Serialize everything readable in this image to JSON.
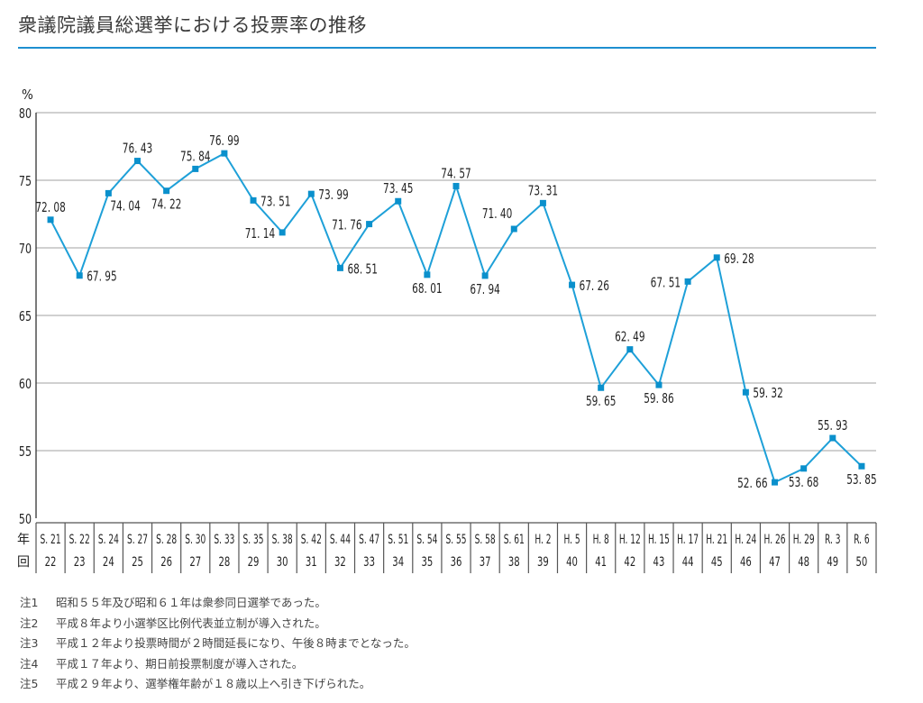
{
  "title": "衆議院議員総選挙における投票率の推移",
  "colors": {
    "accent": "#1d8fd0",
    "line": "#1ea0d8",
    "marker": "#0a90cc",
    "grid": "#b5b5b5"
  },
  "chart_data": {
    "type": "line",
    "title": "衆議院議員総選挙における投票率の推移",
    "ylabel": "%",
    "ylim": [
      50,
      80
    ],
    "yticks": [
      50,
      55,
      60,
      65,
      70,
      75,
      80
    ],
    "grid": true,
    "row_labels": {
      "year": "年",
      "session": "回"
    },
    "years": [
      "S. 21",
      "S. 22",
      "S. 24",
      "S. 27",
      "S. 28",
      "S. 30",
      "S. 33",
      "S. 35",
      "S. 38",
      "S. 42",
      "S. 44",
      "S. 47",
      "S. 51",
      "S. 54",
      "S. 55",
      "S. 58",
      "S. 61",
      "H. 2",
      "H. 5",
      "H. 8",
      "H. 12",
      "H. 15",
      "H. 17",
      "H. 21",
      "H. 24",
      "H. 26",
      "H. 29",
      "R. 3",
      "R. 6"
    ],
    "sessions": [
      "22",
      "23",
      "24",
      "25",
      "26",
      "27",
      "28",
      "29",
      "30",
      "31",
      "32",
      "33",
      "34",
      "35",
      "36",
      "37",
      "38",
      "39",
      "40",
      "41",
      "42",
      "43",
      "44",
      "45",
      "46",
      "47",
      "48",
      "49",
      "50"
    ],
    "values": [
      72.08,
      67.95,
      74.04,
      76.43,
      74.22,
      75.84,
      76.99,
      73.51,
      71.14,
      73.99,
      68.51,
      71.76,
      73.45,
      68.01,
      74.57,
      67.94,
      71.4,
      73.31,
      67.26,
      59.65,
      62.49,
      59.86,
      67.51,
      69.28,
      59.32,
      52.66,
      53.68,
      55.93,
      53.85
    ],
    "value_labels": [
      "72. 08",
      "67. 95",
      "74. 04",
      "76. 43",
      "74. 22",
      "75. 84",
      "76. 99",
      "73. 51",
      "71. 14",
      "73. 99",
      "68. 51",
      "71. 76",
      "73. 45",
      "68. 01",
      "74. 57",
      "67. 94",
      "71. 40",
      "73. 31",
      "67. 26",
      "59. 65",
      "62. 49",
      "59. 86",
      "67. 51",
      "69. 28",
      "59. 32",
      "52. 66",
      "53. 68",
      "55. 93",
      "53. 85"
    ],
    "label_side": [
      "top",
      "right",
      "bottom-right",
      "top",
      "bottom",
      "top",
      "top",
      "right",
      "left",
      "right",
      "right",
      "left",
      "top",
      "bottom",
      "top",
      "bottom",
      "top-left",
      "top",
      "right",
      "bottom",
      "top",
      "bottom",
      "left",
      "right",
      "right",
      "left",
      "bottom",
      "top",
      "bottom"
    ]
  },
  "notes": [
    {
      "num": "注1",
      "text": "昭和５５年及び昭和６１年は衆参同日選挙であった。"
    },
    {
      "num": "注2",
      "text": "平成８年より小選挙区比例代表並立制が導入された。"
    },
    {
      "num": "注3",
      "text": "平成１２年より投票時間が２時間延長になり、午後８時までとなった。"
    },
    {
      "num": "注4",
      "text": "平成１７年より、期日前投票制度が導入された。"
    },
    {
      "num": "注5",
      "text": "平成２９年より、選挙権年齢が１８歳以上へ引き下げられた。"
    }
  ]
}
